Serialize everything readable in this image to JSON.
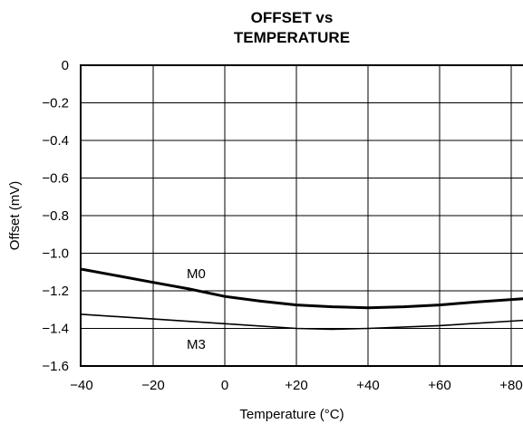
{
  "chart_data": {
    "type": "line",
    "title_line1": "OFFSET vs",
    "title_line2": "TEMPERATURE",
    "xlabel": "Temperature (°C)",
    "ylabel": "Offset (mV)",
    "xlim": [
      -40,
      85
    ],
    "ylim": [
      -1.6,
      0
    ],
    "xticks": [
      -40,
      -20,
      0,
      20,
      40,
      60,
      80
    ],
    "xtick_labels": [
      "−40",
      "−20",
      "0",
      "+20",
      "+40",
      "+60",
      "+80"
    ],
    "yticks": [
      0,
      -0.2,
      -0.4,
      -0.6,
      -0.8,
      -1.0,
      -1.2,
      -1.4,
      -1.6
    ],
    "ytick_labels": [
      "0",
      "−0.2",
      "−0.4",
      "−0.6",
      "−0.8",
      "−1.0",
      "−1.2",
      "−1.4",
      "−1.6"
    ],
    "grid": true,
    "series": [
      {
        "name": "M0",
        "x": [
          -40,
          -30,
          -20,
          -10,
          0,
          10,
          20,
          30,
          40,
          50,
          60,
          70,
          85
        ],
        "y": [
          -1.085,
          -1.12,
          -1.155,
          -1.19,
          -1.23,
          -1.255,
          -1.275,
          -1.285,
          -1.29,
          -1.285,
          -1.275,
          -1.26,
          -1.24
        ]
      },
      {
        "name": "M3",
        "x": [
          -40,
          -20,
          0,
          20,
          30,
          40,
          60,
          85
        ],
        "y": [
          -1.325,
          -1.35,
          -1.375,
          -1.4,
          -1.405,
          -1.4,
          -1.385,
          -1.355
        ]
      }
    ]
  }
}
